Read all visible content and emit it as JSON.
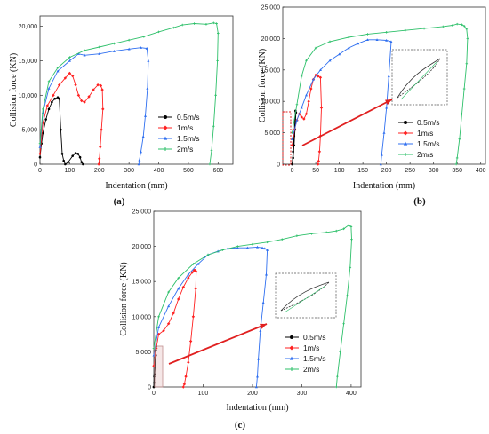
{
  "colors": {
    "s05": "#000000",
    "s1": "#ff2020",
    "s15": "#2f6ff0",
    "s2": "#2ec06a",
    "arrow": "#e02020",
    "highlight": "#e02020"
  },
  "chart_data": [
    {
      "type": "line",
      "panel_label": "(a)",
      "xlabel": "Indentation (mm)",
      "ylabel": "Collision force (KN)",
      "xlim": [
        0,
        650
      ],
      "ylim": [
        0,
        21500
      ],
      "xticks": [
        0,
        100,
        200,
        300,
        400,
        500,
        600
      ],
      "xticklabels": [
        "0",
        "100",
        "200",
        "300",
        "400",
        "500",
        "600"
      ],
      "yticks": [
        0,
        5000,
        10000,
        15000,
        20000
      ],
      "yticklabels": [
        "0",
        "5,000",
        "10,000",
        "15,000",
        "20,000"
      ],
      "legend_position": "bottom-center",
      "series": [
        {
          "name": "0.5m/s",
          "x": [
            0,
            5,
            10,
            20,
            30,
            40,
            50,
            60,
            65,
            70,
            75,
            80,
            85,
            95,
            110,
            120,
            128,
            135,
            140,
            145
          ],
          "y": [
            1000,
            3000,
            4500,
            6500,
            8000,
            9000,
            9500,
            9700,
            9500,
            5000,
            1500,
            500,
            0,
            300,
            1200,
            1600,
            1500,
            1000,
            300,
            0
          ]
        },
        {
          "name": "1m/s",
          "x": [
            0,
            10,
            25,
            45,
            65,
            85,
            100,
            110,
            120,
            130,
            140,
            150,
            165,
            180,
            195,
            205,
            210,
            212,
            207,
            203,
            200,
            198
          ],
          "y": [
            1500,
            6000,
            8500,
            10000,
            11500,
            12500,
            13200,
            12800,
            11500,
            10000,
            9200,
            9000,
            9800,
            10800,
            11500,
            11400,
            10800,
            8000,
            5000,
            2500,
            800,
            0
          ]
        },
        {
          "name": "1.5m/s",
          "x": [
            0,
            10,
            30,
            60,
            100,
            130,
            150,
            200,
            250,
            300,
            340,
            360,
            365,
            362,
            355,
            348,
            340,
            335,
            333
          ],
          "y": [
            2500,
            7500,
            11000,
            13500,
            15000,
            16000,
            15800,
            16000,
            16400,
            16700,
            16900,
            16800,
            15000,
            11000,
            7000,
            4000,
            1800,
            600,
            0
          ]
        },
        {
          "name": "2m/s",
          "x": [
            0,
            10,
            30,
            60,
            100,
            150,
            200,
            250,
            300,
            350,
            400,
            450,
            480,
            520,
            560,
            585,
            595,
            600,
            598,
            592,
            585,
            578,
            572
          ],
          "y": [
            3000,
            8000,
            12000,
            14000,
            15500,
            16500,
            17000,
            17500,
            18000,
            18500,
            19200,
            19800,
            20200,
            20400,
            20300,
            20500,
            20400,
            19000,
            15000,
            10000,
            5500,
            2000,
            0
          ]
        }
      ]
    },
    {
      "type": "line",
      "panel_label": "(b)",
      "xlabel": "Indentation (mm)",
      "ylabel": "Collision force (KN)",
      "xlim": [
        -20,
        410
      ],
      "ylim": [
        0,
        25000
      ],
      "xticks": [
        0,
        50,
        100,
        150,
        200,
        250,
        300,
        350,
        400
      ],
      "xticklabels": [
        "0",
        "50",
        "100",
        "150",
        "200",
        "250",
        "300",
        "350",
        "400"
      ],
      "yticks": [
        0,
        5000,
        10000,
        15000,
        20000,
        25000
      ],
      "yticklabels": [
        "0",
        "5,000",
        "10,000",
        "15,000",
        "20,000",
        "25,000"
      ],
      "legend_position": "bottom-center",
      "series": [
        {
          "name": "0.5m/s",
          "x": [
            0,
            2,
            4,
            6,
            7,
            8,
            6,
            4,
            2,
            0
          ],
          "y": [
            0,
            2000,
            4500,
            7000,
            8500,
            8200,
            5500,
            3000,
            1000,
            0
          ]
        },
        {
          "name": "1m/s",
          "x": [
            0,
            5,
            10,
            15,
            20,
            25,
            30,
            35,
            40,
            45,
            50,
            55,
            60,
            62,
            60,
            58,
            56,
            55
          ],
          "y": [
            3000,
            5500,
            7000,
            8000,
            7500,
            7200,
            8000,
            10000,
            12000,
            13500,
            14200,
            14000,
            13800,
            9000,
            4500,
            2000,
            500,
            0
          ]
        },
        {
          "name": "1.5m/s",
          "x": [
            0,
            10,
            20,
            30,
            45,
            60,
            80,
            100,
            120,
            140,
            160,
            180,
            200,
            210,
            205,
            200,
            195,
            190,
            188
          ],
          "y": [
            4000,
            7000,
            9000,
            11000,
            13500,
            15000,
            16500,
            17500,
            18500,
            19200,
            19800,
            19800,
            19700,
            19500,
            14000,
            9000,
            5000,
            1500,
            0
          ]
        },
        {
          "name": "2m/s",
          "x": [
            0,
            10,
            20,
            30,
            50,
            80,
            120,
            160,
            200,
            240,
            280,
            320,
            340,
            350,
            360,
            365,
            370,
            372,
            370,
            365,
            360,
            355,
            350,
            348
          ],
          "y": [
            5000,
            9500,
            14000,
            16500,
            18500,
            19500,
            20200,
            20700,
            21000,
            21300,
            21600,
            21900,
            22100,
            22300,
            22200,
            22000,
            21500,
            20000,
            16000,
            12000,
            8000,
            4000,
            1000,
            0
          ]
        }
      ]
    },
    {
      "type": "line",
      "panel_label": "(c)",
      "xlabel": "Indentation (mm)",
      "ylabel": "Collision force (KN)",
      "xlim": [
        0,
        420
      ],
      "ylim": [
        0,
        25000
      ],
      "xticks": [
        0,
        100,
        200,
        300,
        400
      ],
      "xticklabels": [
        "0",
        "100",
        "200",
        "300",
        "400"
      ],
      "yticks": [
        0,
        5000,
        10000,
        15000,
        20000,
        25000
      ],
      "yticklabels": [
        "0",
        "5,000",
        "10,000",
        "15,000",
        "20,000",
        "25,000"
      ],
      "legend_position": "bottom-center",
      "series": [
        {
          "name": "0.5m/s",
          "x": [
            0,
            1,
            2,
            3,
            4,
            5,
            4,
            3,
            2,
            1,
            0
          ],
          "y": [
            0,
            1500,
            3000,
            4200,
            5200,
            5800,
            4500,
            3000,
            1800,
            600,
            0
          ]
        },
        {
          "name": "1m/s",
          "x": [
            0,
            5,
            10,
            20,
            30,
            40,
            50,
            60,
            70,
            78,
            82,
            84,
            86,
            85,
            80,
            75,
            70,
            65,
            62,
            60
          ],
          "y": [
            3000,
            5500,
            7500,
            8000,
            9000,
            10500,
            12500,
            14200,
            15500,
            16300,
            16600,
            16600,
            16400,
            14000,
            10000,
            6500,
            3500,
            1500,
            400,
            0
          ]
        },
        {
          "name": "1.5m/s",
          "x": [
            0,
            10,
            30,
            50,
            70,
            90,
            110,
            130,
            150,
            170,
            190,
            210,
            220,
            225,
            230,
            228,
            222,
            216,
            212,
            210,
            208
          ],
          "y": [
            4500,
            8500,
            11500,
            14000,
            16000,
            17500,
            18800,
            19300,
            19700,
            19800,
            19800,
            19900,
            19800,
            19700,
            19500,
            16000,
            12000,
            8000,
            4000,
            1500,
            0
          ]
        },
        {
          "name": "2m/s",
          "x": [
            0,
            10,
            30,
            50,
            80,
            110,
            140,
            170,
            200,
            230,
            260,
            290,
            320,
            350,
            370,
            385,
            395,
            400,
            401,
            398,
            392,
            385,
            378,
            372,
            370
          ],
          "y": [
            5500,
            10000,
            13500,
            15500,
            17500,
            18800,
            19500,
            20000,
            20300,
            20600,
            21000,
            21500,
            21800,
            22000,
            22200,
            22500,
            23000,
            22800,
            21000,
            17000,
            13000,
            9000,
            5000,
            1500,
            0
          ]
        }
      ]
    }
  ]
}
